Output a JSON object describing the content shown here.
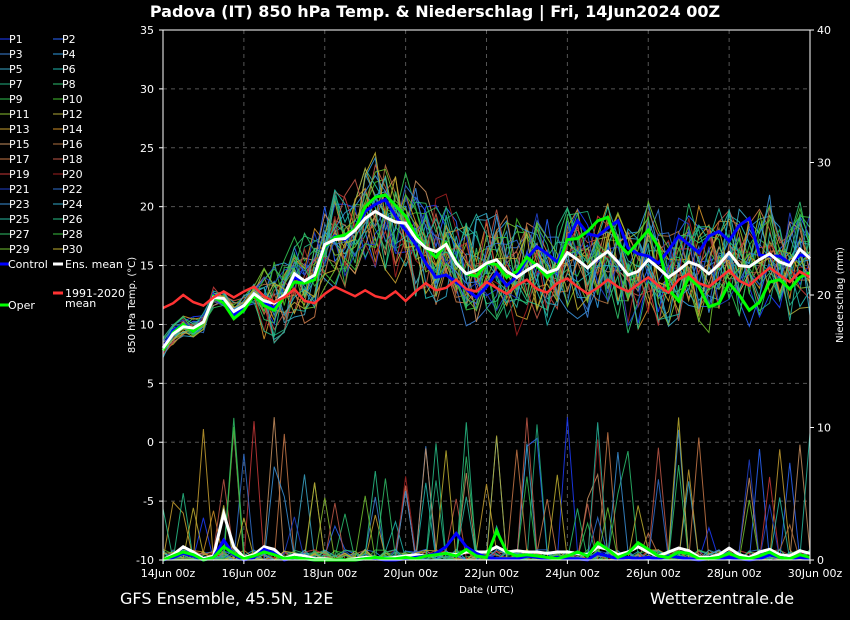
{
  "header": {
    "title": "Padova  (IT)  850 hPa Temp. & Niederschlag | Fri, 14Jun2024 00Z"
  },
  "footer": {
    "model": "GFS Ensemble, 45.5N, 12E",
    "source": "Wetterzentrale.de"
  },
  "colors": {
    "background": "#000000",
    "control": "#0000ff",
    "ens_mean": "#ffffff",
    "oper": "#00ff00",
    "climate": "#ff3333"
  },
  "chart_data": {
    "type": "line",
    "x_ticks": [
      "14Jun 00z",
      "16Jun 00z",
      "18Jun 00z",
      "20Jun 00z",
      "22Jun 00z",
      "24Jun 00z",
      "26Jun 00z",
      "28Jun 00z",
      "30Jun 00z"
    ],
    "xlabel": "Date (UTC)",
    "ylabel": "850 hPa Temp. (°C)",
    "y2label": "Niederschlag (mm)",
    "ylim": [
      -10,
      35
    ],
    "y2lim": [
      0,
      40
    ],
    "y_ticks": [
      -10,
      -5,
      0,
      5,
      10,
      15,
      20,
      25,
      30,
      35
    ],
    "y2_ticks": [
      0,
      10,
      20,
      30,
      40
    ],
    "grid": true,
    "interval_hours": 6,
    "legend": {
      "members": [
        {
          "label": "P1",
          "color": "#1c3cff"
        },
        {
          "label": "P2",
          "color": "#2a66ff"
        },
        {
          "label": "P3",
          "color": "#3c82d8"
        },
        {
          "label": "P4",
          "color": "#2e9ae0"
        },
        {
          "label": "P5",
          "color": "#3aa6c8"
        },
        {
          "label": "P6",
          "color": "#20b8b0"
        },
        {
          "label": "P7",
          "color": "#22b080"
        },
        {
          "label": "P8",
          "color": "#2cc070"
        },
        {
          "label": "P9",
          "color": "#30c050"
        },
        {
          "label": "P10",
          "color": "#44c030"
        },
        {
          "label": "P11",
          "color": "#8ac030"
        },
        {
          "label": "P12",
          "color": "#b0a838"
        },
        {
          "label": "P13",
          "color": "#c8a030"
        },
        {
          "label": "P14",
          "color": "#d09028"
        },
        {
          "label": "P15",
          "color": "#c89060"
        },
        {
          "label": "P16",
          "color": "#b07040"
        },
        {
          "label": "P17",
          "color": "#c87848"
        },
        {
          "label": "P18",
          "color": "#c05848"
        },
        {
          "label": "P19",
          "color": "#c83838"
        },
        {
          "label": "P20",
          "color": "#a02020"
        },
        {
          "label": "P21",
          "color": "#2040c8"
        },
        {
          "label": "P22",
          "color": "#3070d0"
        },
        {
          "label": "P23",
          "color": "#3a90d8"
        },
        {
          "label": "P24",
          "color": "#30a8c8"
        },
        {
          "label": "P25",
          "color": "#28b8a0"
        },
        {
          "label": "P26",
          "color": "#28c088"
        },
        {
          "label": "P27",
          "color": "#30c068"
        },
        {
          "label": "P28",
          "color": "#38c040"
        },
        {
          "label": "P29",
          "color": "#70c030"
        },
        {
          "label": "P30",
          "color": "#c0b030"
        }
      ],
      "control": "Control",
      "ens_mean": "Ens. mean",
      "climate_line1": "1991-2020",
      "climate_line2": "mean",
      "oper": "Oper"
    },
    "series": [
      {
        "name": "Control",
        "values": [
          8,
          9.5,
          10.0,
          9.6,
          10.2,
          12.5,
          12.0,
          10.8,
          11.5,
          12.6,
          11.8,
          11.4,
          12.5,
          14.0,
          13.6,
          14.0,
          16.5,
          17.5,
          17.2,
          18.0,
          19.6,
          20.2,
          20.6,
          19.2,
          18.0,
          16.8,
          15.2,
          14.0,
          14.2,
          13.6,
          13.0,
          12.3,
          13.2,
          14.4,
          13.3,
          14.1,
          15.6,
          16.6,
          16.0,
          15.3,
          17.1,
          18.8,
          17.7,
          17.5,
          18.2,
          18.8,
          16.5,
          16.0,
          15.8,
          15.2,
          16.3,
          17.5,
          16.8,
          16.1,
          17.5,
          17.9,
          17.1,
          18.4,
          19.0,
          15.9,
          15.8,
          15.8,
          15.2,
          15.9,
          15.8
        ]
      },
      {
        "name": "Ens. mean",
        "values": [
          8,
          9.2,
          9.8,
          9.7,
          10.2,
          12.3,
          12.2,
          11.1,
          11.6,
          12.6,
          12.0,
          11.8,
          12.5,
          14.3,
          13.7,
          14.2,
          16.8,
          17.2,
          17.3,
          18.0,
          19.0,
          19.6,
          19.1,
          18.7,
          18.6,
          17.3,
          16.5,
          16.2,
          16.8,
          15.2,
          14.3,
          14.6,
          15.2,
          15.5,
          14.5,
          14.0,
          14.6,
          15.1,
          14.4,
          14.7,
          16.1,
          15.5,
          14.8,
          15.6,
          16.2,
          15.3,
          14.2,
          14.5,
          15.5,
          14.8,
          14.0,
          14.6,
          15.3,
          15.0,
          14.3,
          15.1,
          16.1,
          15.0,
          14.9,
          15.5,
          16.0,
          15.3,
          15.0,
          16.4,
          15.6
        ]
      },
      {
        "name": "Oper",
        "values": [
          7.8,
          9.3,
          10.0,
          9.4,
          10.2,
          12.4,
          11.8,
          10.5,
          11.2,
          12.5,
          11.6,
          11.2,
          12.4,
          13.6,
          13.5,
          13.8,
          16.6,
          17.4,
          17.6,
          18.1,
          20.0,
          20.8,
          21.0,
          20.1,
          19.2,
          17.6,
          16.5,
          15.7,
          16.9,
          15.3,
          14.3,
          14.1,
          15.2,
          15.1,
          14.0,
          14.5,
          15.7,
          15.0,
          14.0,
          14.8,
          17.2,
          17.3,
          17.9,
          18.8,
          19.1,
          16.9,
          16.0,
          17.0,
          18.0,
          16.6,
          13.0,
          12.0,
          14.0,
          13.2,
          11.5,
          11.8,
          13.5,
          12.5,
          11.2,
          11.9,
          13.6,
          13.8,
          13.0,
          14.0,
          14.4
        ]
      },
      {
        "name": "1991-2020 mean",
        "values": [
          11.4,
          11.8,
          12.5,
          11.9,
          11.6,
          12.3,
          12.8,
          12.3,
          12.8,
          13.2,
          12.4,
          11.9,
          12.3,
          13.0,
          12.0,
          11.8,
          12.6,
          13.2,
          12.8,
          12.4,
          12.9,
          12.4,
          12.2,
          12.8,
          12.0,
          12.8,
          13.5,
          12.9,
          13.1,
          13.8,
          13.0,
          12.8,
          13.6,
          13.1,
          12.6,
          13.3,
          13.8,
          13.0,
          12.7,
          13.5,
          13.9,
          13.2,
          12.6,
          13.1,
          13.8,
          13.2,
          12.8,
          13.4,
          14.0,
          13.3,
          12.7,
          13.8,
          14.3,
          13.5,
          13.2,
          13.9,
          14.6,
          13.7,
          13.3,
          14.1,
          14.8,
          14.2,
          13.6,
          14.5,
          14.0
        ]
      }
    ],
    "precip_series": [
      {
        "name": "Ens. mean",
        "values": [
          0,
          0.4,
          1.0,
          0.6,
          0.1,
          0.3,
          3.5,
          1.0,
          0.2,
          0.4,
          1.0,
          0.8,
          0.1,
          0.4,
          0.3,
          0.1,
          0.1,
          0.0,
          0.0,
          0.1,
          0.2,
          0.2,
          0.1,
          0.2,
          0.3,
          0.4,
          0.3,
          0.4,
          0.5,
          0.4,
          0.6,
          0.6,
          0.6,
          1.0,
          0.6,
          0.7,
          0.6,
          0.6,
          0.5,
          0.6,
          0.6,
          0.5,
          0.4,
          1.0,
          0.8,
          0.4,
          0.6,
          1.0,
          0.6,
          0.3,
          0.6,
          0.9,
          0.7,
          0.2,
          0.2,
          0.4,
          0.9,
          0.4,
          0.2,
          0.6,
          0.8,
          0.4,
          0.3,
          0.7,
          0.5
        ]
      },
      {
        "name": "Control",
        "values": [
          0,
          0.2,
          0.5,
          0.3,
          0,
          0.2,
          1.5,
          0.4,
          0,
          0.2,
          0.8,
          0.5,
          0,
          0.2,
          0.1,
          0,
          0,
          0,
          0,
          0,
          0.1,
          0.1,
          0,
          0,
          0.1,
          0.2,
          0.3,
          0.5,
          1.0,
          2.0,
          1.0,
          0.5,
          0.2,
          0.1,
          0.1,
          0.1,
          0.3,
          0.2,
          0.1,
          0.2,
          0.1,
          0.1,
          0,
          0.5,
          0.3,
          0.1,
          0.2,
          0.1,
          0.2,
          0.1,
          0.3,
          0.2,
          0.1,
          0,
          0.1,
          0.1,
          0.2,
          0.1,
          0,
          0.1,
          0.4,
          0.2,
          0.1,
          0.2,
          0.1
        ]
      },
      {
        "name": "Oper",
        "values": [
          0,
          0.3,
          0.6,
          0.4,
          0,
          0.2,
          1.0,
          0.5,
          0.1,
          0.3,
          0.6,
          0.4,
          0.1,
          0.2,
          0.1,
          0,
          0,
          0,
          0,
          0,
          0.1,
          0.2,
          0.1,
          0.1,
          0.2,
          0.1,
          0.3,
          0.4,
          0.5,
          0.3,
          0.8,
          0.3,
          0.2,
          2.2,
          0.6,
          0.3,
          0.4,
          0.3,
          0.2,
          0.1,
          0.3,
          0.6,
          0.3,
          1.3,
          0.8,
          0.2,
          0.5,
          1.3,
          0.8,
          0.3,
          0.2,
          0.6,
          0.5,
          0.1,
          0.1,
          0.2,
          0.5,
          0.2,
          0.1,
          0.3,
          0.6,
          0.2,
          0.1,
          0.4,
          0.2
        ]
      }
    ]
  }
}
